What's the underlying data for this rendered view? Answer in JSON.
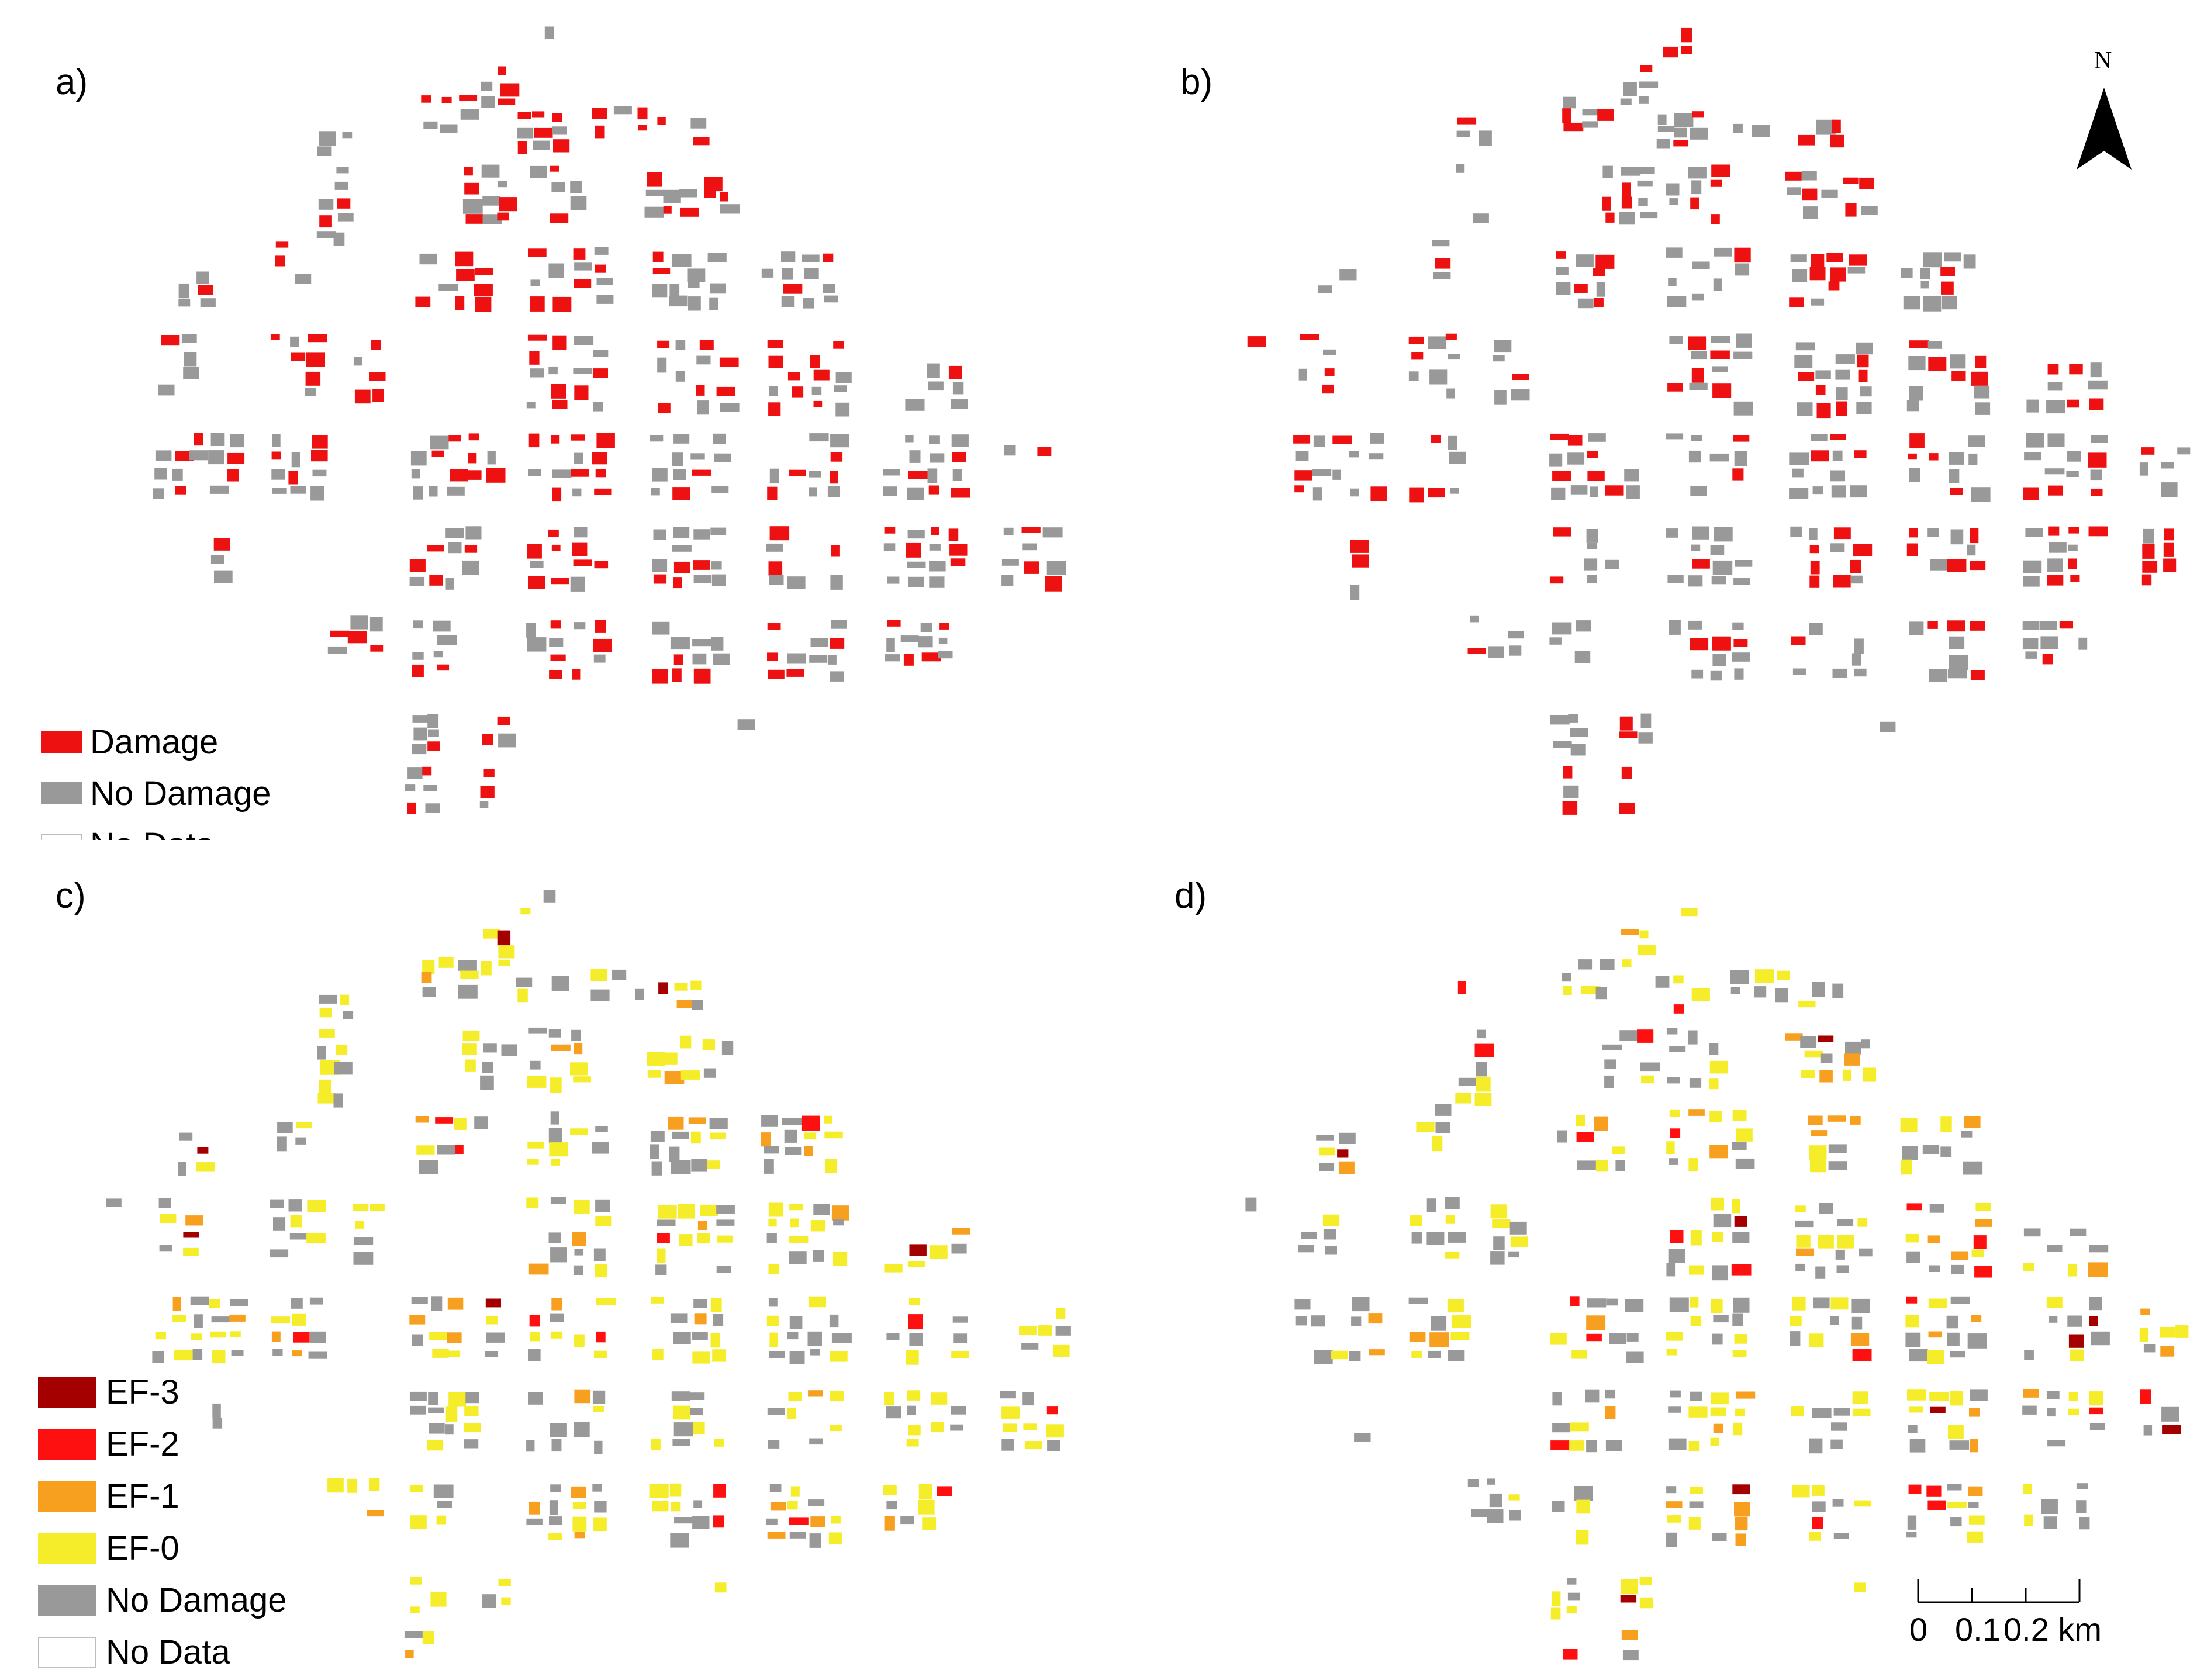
{
  "panels": [
    {
      "label": "a)",
      "legend": "binary",
      "seed": 11,
      "scheme": "binary_a"
    },
    {
      "label": "b)",
      "legend": null,
      "seed": 23,
      "scheme": "binary_b"
    },
    {
      "label": "c)",
      "legend": "ef",
      "seed": 37,
      "scheme": "ef_c"
    },
    {
      "label": "d)",
      "legend": null,
      "seed": 53,
      "scheme": "ef_d"
    }
  ],
  "legend_binary": [
    {
      "label": "Damage",
      "color": "#ee1111"
    },
    {
      "label": "No Damage",
      "color": "#999999"
    },
    {
      "label": "No Data",
      "color": "#ffffff"
    }
  ],
  "legend_ef": [
    {
      "label": "EF-3",
      "color": "#a50000"
    },
    {
      "label": "EF-2",
      "color": "#ff1010"
    },
    {
      "label": "EF-1",
      "color": "#f7a020"
    },
    {
      "label": "EF-0",
      "color": "#f5ec2a"
    },
    {
      "label": "No Damage",
      "color": "#999999"
    },
    {
      "label": "No Data",
      "color": "#ffffff"
    }
  ],
  "north_arrow": {
    "label": "N"
  },
  "scale_bar": {
    "labels": [
      "0",
      "0.1",
      "0.2 km"
    ]
  },
  "colors": {
    "damage": "#ee1111",
    "no_damage": "#999999",
    "ef3": "#a50000",
    "ef2": "#ff1010",
    "ef1": "#f7a020",
    "ef0": "#f5ec2a"
  },
  "damage_shares": {
    "binary_a": {
      "damage": 0.45
    },
    "binary_b": {
      "damage": 0.4
    },
    "ef_c": {
      "ef3": 0.02,
      "ef2": 0.04,
      "ef1": 0.08,
      "ef0": 0.42
    },
    "ef_d": {
      "ef3": 0.03,
      "ef2": 0.06,
      "ef1": 0.08,
      "ef0": 0.36
    }
  }
}
